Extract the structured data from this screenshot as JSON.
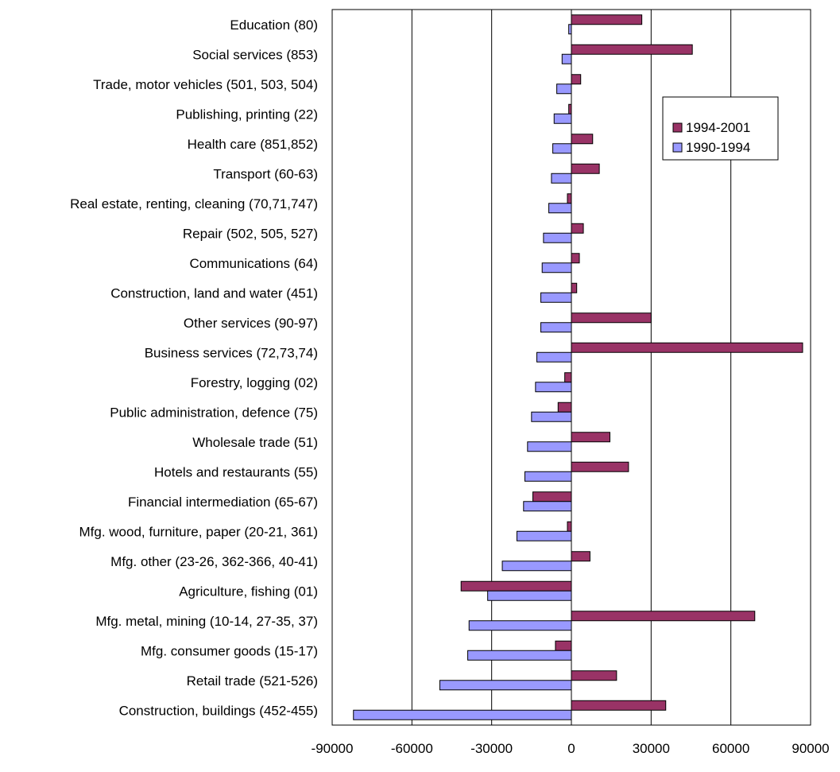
{
  "chart_data": {
    "type": "bar",
    "orientation": "horizontal",
    "title": "",
    "xlabel": "",
    "ylabel": "",
    "xlim": [
      -90000,
      90000
    ],
    "xticks": [
      -90000,
      -60000,
      -30000,
      0,
      30000,
      60000,
      90000
    ],
    "grid": "vertical",
    "legend_position": "top-right",
    "categories": [
      "Education (80)",
      "Social services (853)",
      "Trade, motor vehicles (501, 503, 504)",
      "Publishing, printing (22)",
      "Health care (851,852)",
      "Transport (60-63)",
      "Real estate, renting, cleaning (70,71,747)",
      "Repair (502, 505, 527)",
      "Communications (64)",
      "Construction, land and water (451)",
      "Other services (90-97)",
      "Business services (72,73,74)",
      "Forestry, logging (02)",
      "Public administration, defence (75)",
      "Wholesale trade (51)",
      "Hotels and restaurants (55)",
      "Financial intermediation (65-67)",
      "Mfg. wood, furniture, paper (20-21, 361)",
      "Mfg. other (23-26, 362-366, 40-41)",
      "Agriculture, fishing (01)",
      "Mfg. metal, mining (10-14, 27-35, 37)",
      "Mfg. consumer goods (15-17)",
      "Retail trade (521-526)",
      "Construction, buildings (452-455)"
    ],
    "series": [
      {
        "name": "1994-2001",
        "color": "#993366",
        "values": [
          26500,
          45500,
          3500,
          -1000,
          8000,
          10500,
          -1500,
          4500,
          3000,
          2000,
          30000,
          87000,
          -2500,
          -5000,
          14500,
          21500,
          -14500,
          -1500,
          7000,
          -41500,
          69000,
          -6000,
          17000,
          35500
        ]
      },
      {
        "name": "1990-1994",
        "color": "#9999ff",
        "values": [
          -1000,
          -3500,
          -5500,
          -6500,
          -7000,
          -7500,
          -8500,
          -10500,
          -11000,
          -11500,
          -11500,
          -13000,
          -13500,
          -15000,
          -16500,
          -17500,
          -18000,
          -20500,
          -26000,
          -31500,
          -38500,
          -39000,
          -49500,
          -82000
        ]
      }
    ]
  }
}
